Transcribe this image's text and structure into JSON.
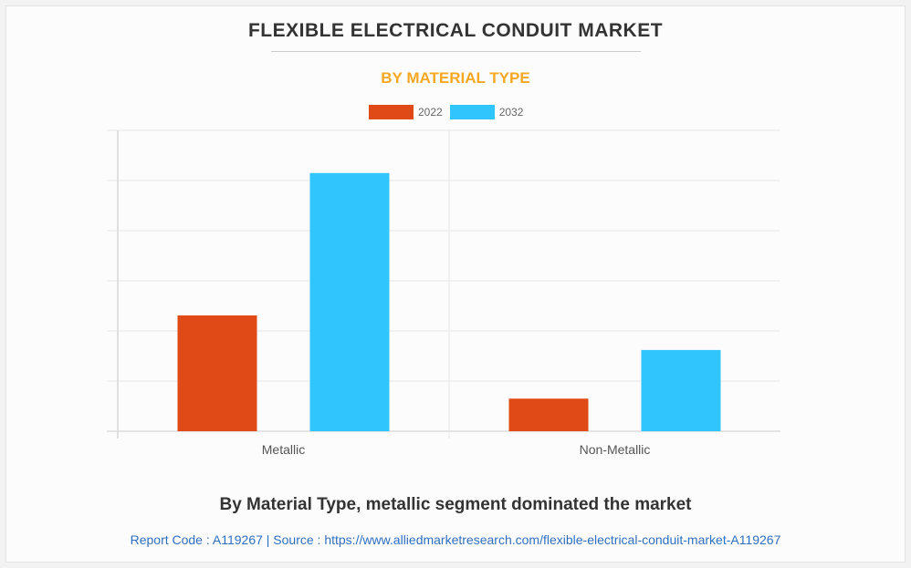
{
  "header": {
    "title": "FLEXIBLE ELECTRICAL CONDUIT MARKET",
    "subtitle": "BY MATERIAL TYPE"
  },
  "footer": {
    "caption": "By Material Type, metallic segment dominated the market",
    "source": "Report Code : A119267  |  Source : https://www.alliedmarketresearch.com/flexible-electrical-conduit-market-A119267"
  },
  "chart_data": {
    "type": "bar",
    "title": "FLEXIBLE ELECTRICAL CONDUIT MARKET",
    "subtitle": "BY MATERIAL TYPE",
    "categories": [
      "Metallic",
      "Non-Metallic"
    ],
    "series": [
      {
        "name": "2022",
        "color": "#e04a16",
        "values": [
          2.31,
          0.65
        ]
      },
      {
        "name": "2032",
        "color": "#30c5fd",
        "values": [
          5.15,
          1.62
        ]
      }
    ],
    "xlabel": "",
    "ylabel": "",
    "ylim": [
      0,
      6
    ],
    "grid": true,
    "legend": "top-center"
  }
}
